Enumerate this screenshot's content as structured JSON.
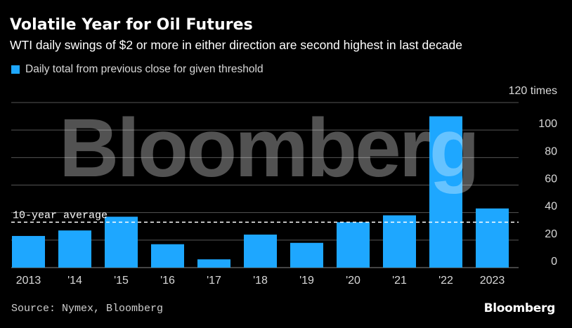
{
  "title": "Volatile Year for Oil Futures",
  "subtitle": "WTI daily swings of $2 or more in either direction are second highest in last decade",
  "legend_label": "Daily total from previous close for given threshold",
  "source": "Source: Nymex, Bloomberg",
  "brand": "Bloomberg",
  "watermark": "Bloomberg",
  "colors": {
    "bar": "#1ea7ff",
    "grid": "#555555",
    "average_line": "#ffffff",
    "background": "#000000"
  },
  "chart_data": {
    "type": "bar",
    "categories": [
      "2013",
      "'14",
      "'15",
      "'16",
      "'17",
      "'18",
      "'19",
      "'20",
      "'21",
      "'22",
      "2023"
    ],
    "series": [
      {
        "name": "Daily total from previous close for given threshold",
        "values": [
          23,
          27,
          37,
          17,
          6,
          24,
          18,
          33,
          38,
          110,
          43
        ]
      }
    ],
    "ylim": [
      0,
      120
    ],
    "yticks": [
      0,
      20,
      40,
      60,
      80,
      100,
      120
    ],
    "ytick_labels": [
      "0",
      "20",
      "40",
      "60",
      "80",
      "100",
      "120 times"
    ],
    "axis_position": "right",
    "grid": true,
    "reference_line": {
      "label": "10-year average",
      "value": 33,
      "style": "dashed"
    }
  }
}
